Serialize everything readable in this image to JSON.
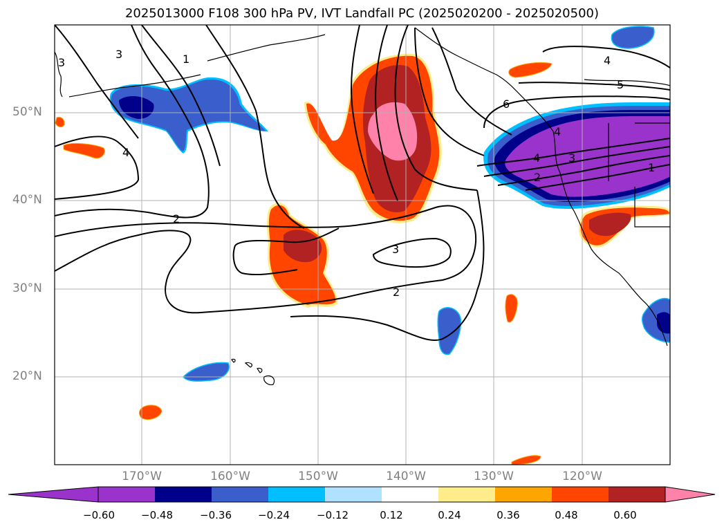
{
  "title": "2025013000 F108 300 hPa PV, IVT Landfall PC (2025020200 - 2025020500)",
  "lat_labels": [
    "50°N",
    "40°N",
    "30°N",
    "20°N"
  ],
  "lon_labels": [
    "170°W",
    "160°W",
    "150°W",
    "140°W",
    "130°W",
    "120°W"
  ],
  "contour_labels": [
    "3",
    "3",
    "4",
    "2",
    "2",
    "3",
    "1",
    "5",
    "4",
    "6",
    "4",
    "4",
    "3",
    "2",
    "1"
  ],
  "colorbar": {
    "ticks": [
      "−0.60",
      "−0.48",
      "−0.36",
      "−0.24",
      "−0.12",
      "0.12",
      "0.24",
      "0.36",
      "0.48",
      "0.60"
    ],
    "colors": [
      "#9933cc",
      "#00008b",
      "#3a5fcd",
      "#00bfff",
      "#b0e2ff",
      "#ffffff",
      "#ffec8b",
      "#ffa500",
      "#ff4500",
      "#b22222",
      "#ff82ab"
    ],
    "extend": "both"
  },
  "map": {
    "lat_range": [
      10,
      60
    ],
    "lon_range": [
      -180,
      -110
    ],
    "gridlines": true,
    "shading": "IVT landfall PC",
    "contours": "300 hPa PV"
  }
}
